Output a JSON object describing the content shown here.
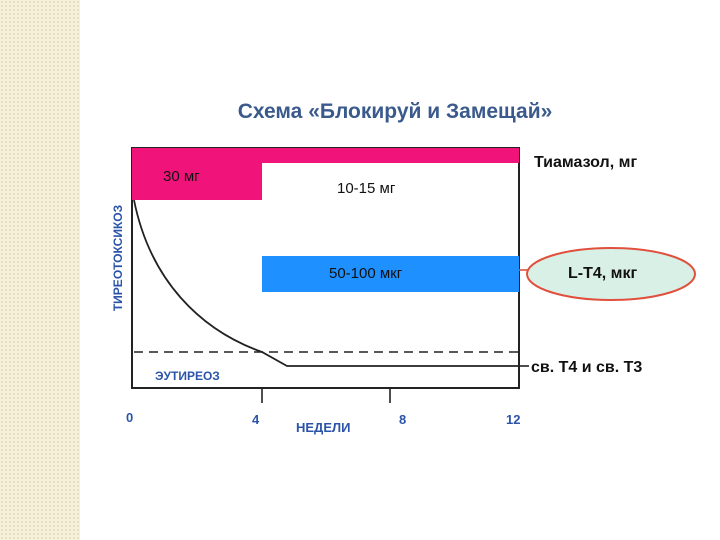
{
  "slide": {
    "title": "Схема «Блокируй и Замещай»"
  },
  "doses": {
    "thiamazole_initial": "30 мг",
    "thiamazole_maintenance": "10-15 мг",
    "levothyroxine": "50-100 мкг"
  },
  "legend": {
    "thiamazole": "Тиамазол, мг",
    "levothyroxine": "L-T4, мкг",
    "free_hormones": "св. T4 и св. T3"
  },
  "axis": {
    "y_label": "ТИРЕОТОКСИКОЗ",
    "euthyroid_label": "ЭУТИРЕОЗ",
    "x_label": "НЕДЕЛИ",
    "x_ticks": [
      "0",
      "4",
      "8",
      "12"
    ]
  },
  "colors": {
    "thiamazole_bar": "#f0147a",
    "levothyroxine_bar": "#1e90ff",
    "highlight_fill": "#d9f0e6",
    "highlight_stroke": "#e0503c",
    "axis_text": "#2b54a8"
  }
}
